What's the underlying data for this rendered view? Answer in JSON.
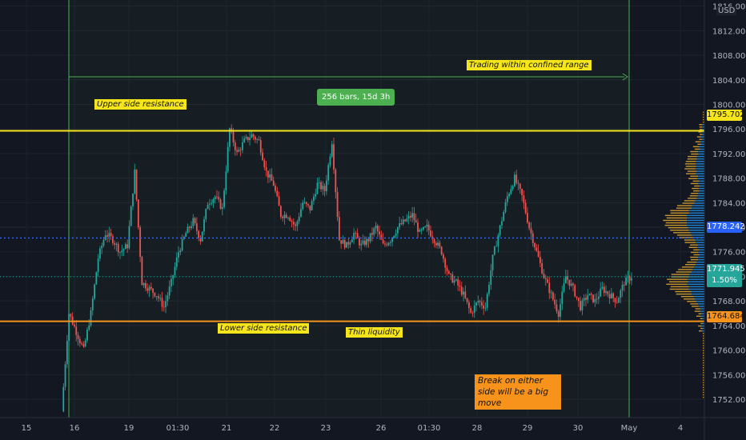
{
  "chart_data": {
    "type": "candlestick",
    "title": "",
    "currency": "USD",
    "x_tick_labels": [
      "15",
      "16",
      "19",
      "01:30",
      "21",
      "22",
      "23",
      "26",
      "01:30",
      "28",
      "29",
      "30",
      "May",
      "4"
    ],
    "y_tick_labels": [
      "1752.000",
      "1756.000",
      "1760.000",
      "1764.000",
      "1768.000",
      "1772.000",
      "1776.000",
      "1780.000",
      "1784.000",
      "1788.000",
      "1792.000",
      "1796.000",
      "1800.000",
      "1804.000",
      "1808.000",
      "1812.000",
      "1816.000"
    ],
    "ylim": [
      1749.0,
      1817.0
    ],
    "levels": {
      "upper_resistance": 1795.702,
      "lower_resistance": 1764.684,
      "dotted_level": 1778.242,
      "last_price": 1771.945,
      "last_change": "1.50%"
    },
    "price_path": [
      [
        0,
        1750
      ],
      [
        4,
        1766
      ],
      [
        8,
        1763
      ],
      [
        12,
        1760
      ],
      [
        16,
        1766
      ],
      [
        20,
        1775
      ],
      [
        24,
        1779
      ],
      [
        28,
        1778
      ],
      [
        32,
        1776
      ],
      [
        36,
        1777
      ],
      [
        40,
        1789
      ],
      [
        44,
        1771
      ],
      [
        48,
        1770
      ],
      [
        52,
        1769
      ],
      [
        56,
        1767
      ],
      [
        60,
        1771
      ],
      [
        64,
        1776
      ],
      [
        68,
        1779
      ],
      [
        72,
        1781
      ],
      [
        76,
        1778
      ],
      [
        80,
        1784
      ],
      [
        84,
        1785
      ],
      [
        88,
        1783
      ],
      [
        92,
        1796
      ],
      [
        96,
        1792
      ],
      [
        100,
        1794
      ],
      [
        104,
        1795
      ],
      [
        108,
        1794
      ],
      [
        112,
        1789
      ],
      [
        116,
        1787
      ],
      [
        120,
        1782
      ],
      [
        124,
        1782
      ],
      [
        128,
        1780
      ],
      [
        132,
        1784
      ],
      [
        136,
        1783
      ],
      [
        140,
        1787
      ],
      [
        144,
        1786
      ],
      [
        148,
        1794
      ],
      [
        152,
        1778
      ],
      [
        156,
        1777
      ],
      [
        160,
        1779
      ],
      [
        164,
        1777
      ],
      [
        168,
        1778
      ],
      [
        172,
        1780
      ],
      [
        176,
        1777
      ],
      [
        180,
        1778
      ],
      [
        184,
        1780
      ],
      [
        188,
        1781
      ],
      [
        192,
        1782
      ],
      [
        196,
        1779
      ],
      [
        200,
        1780
      ],
      [
        204,
        1778
      ],
      [
        208,
        1776
      ],
      [
        212,
        1772
      ],
      [
        216,
        1771
      ],
      [
        220,
        1769
      ],
      [
        224,
        1766
      ],
      [
        228,
        1768
      ],
      [
        232,
        1767
      ],
      [
        236,
        1775
      ],
      [
        240,
        1780
      ],
      [
        244,
        1785
      ],
      [
        248,
        1788
      ],
      [
        252,
        1785
      ],
      [
        256,
        1780
      ],
      [
        260,
        1776
      ],
      [
        264,
        1772
      ],
      [
        268,
        1769
      ],
      [
        272,
        1766
      ],
      [
        276,
        1772
      ],
      [
        280,
        1770
      ],
      [
        284,
        1767
      ],
      [
        288,
        1769
      ],
      [
        292,
        1768
      ],
      [
        296,
        1770
      ],
      [
        300,
        1769
      ],
      [
        304,
        1768
      ],
      [
        308,
        1771
      ],
      [
        312,
        1772
      ]
    ],
    "annotations": {
      "upper": "Upper side resistance",
      "range": "Trading within confined range",
      "bars": "256 bars, 15d 3h",
      "lower": "Lower side resistance",
      "thin": "Thin liquidity",
      "break": "Break on either side will be a big move"
    }
  },
  "colors": {
    "up": "#26a69a",
    "down": "#ef5350",
    "upper_line": "#f5e51a",
    "lower_line": "#f7931a",
    "dotted": "#2962ff",
    "range_box": "#4caf50",
    "background": "#131722"
  }
}
